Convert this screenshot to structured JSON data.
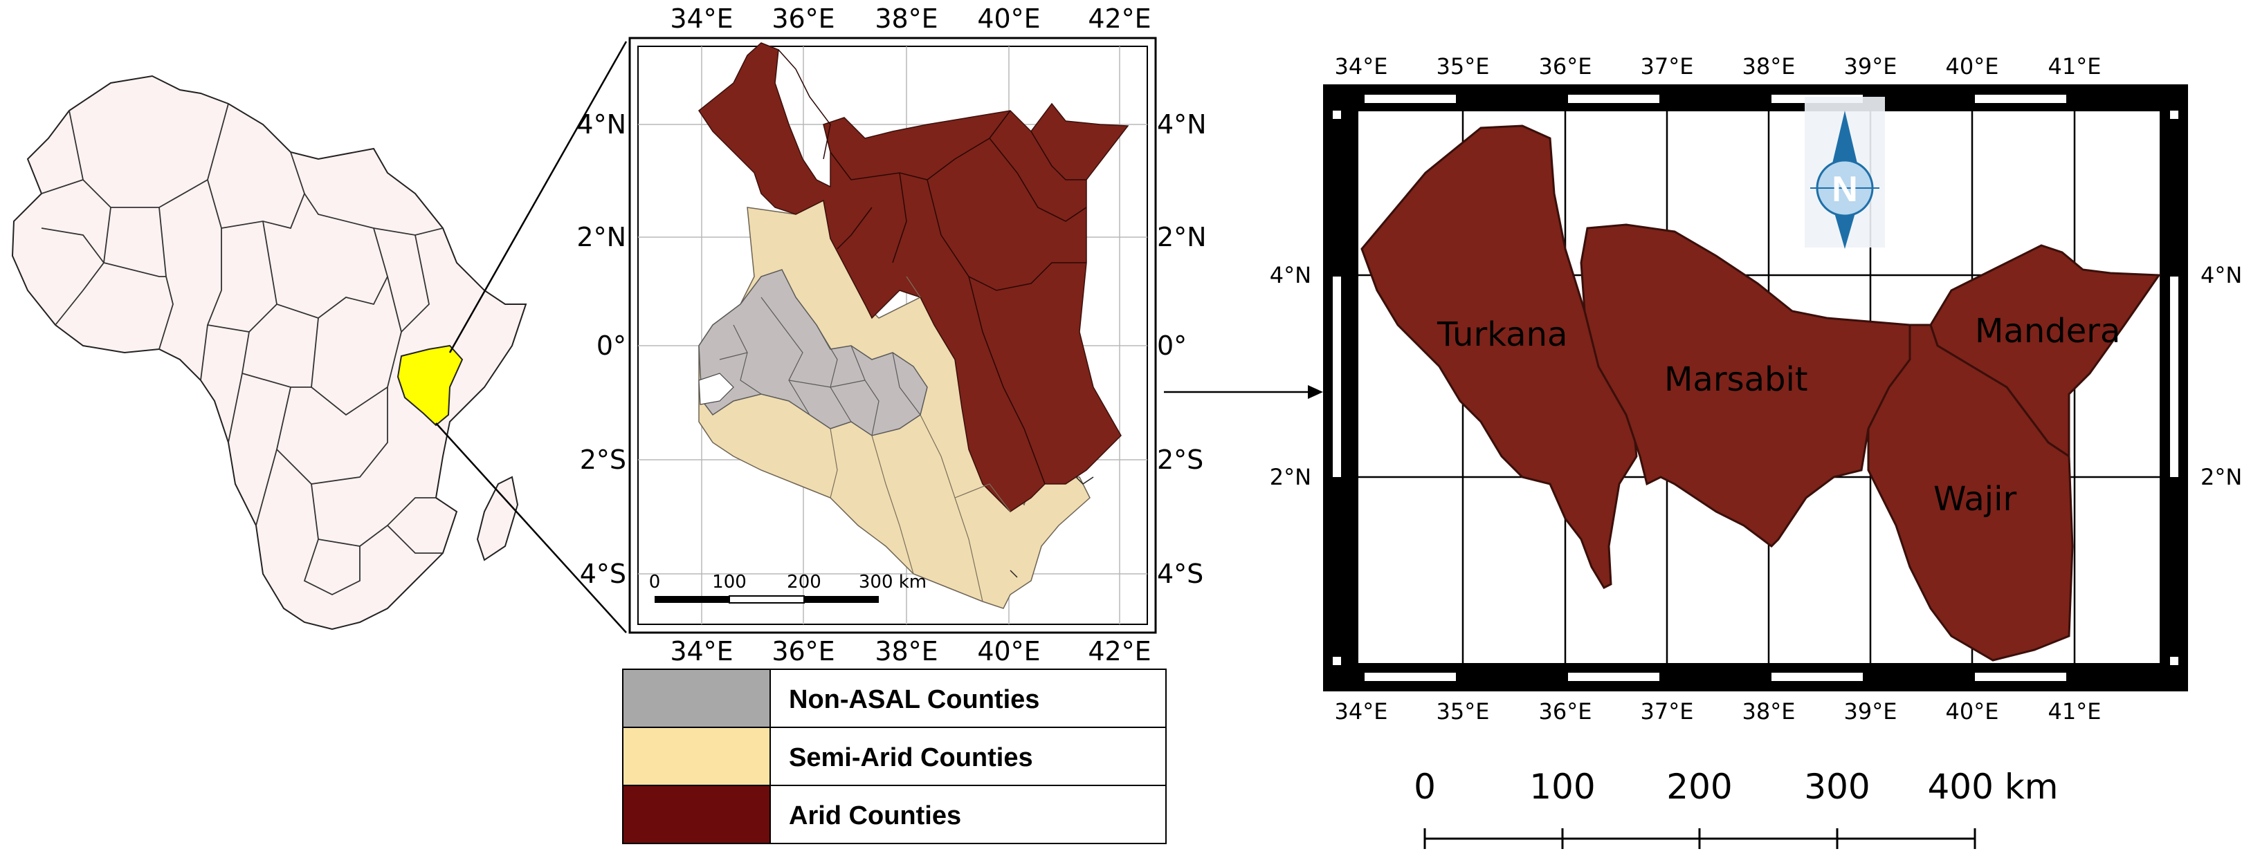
{
  "colors": {
    "arid": "#7d231a",
    "semi_arid": "#efdcb0",
    "non_asal": "#c2bcbc",
    "africa_fill": "#fcf2f2",
    "kenya_highlight": "#ffff00"
  },
  "inset_map": {
    "lon_ticks": [
      "34°E",
      "36°E",
      "38°E",
      "40°E",
      "42°E"
    ],
    "lat_ticks_left": [
      "4°N",
      "2°N",
      "0°",
      "2°S",
      "4°S"
    ],
    "lat_ticks_right": [
      "4°N",
      "2°N",
      "0°",
      "2°S",
      "4°S"
    ],
    "scale_bar": [
      "0",
      "100",
      "200",
      "300 km"
    ]
  },
  "legend": [
    {
      "label": "Non-ASAL Counties",
      "color": "#a8a8a8"
    },
    {
      "label": "Semi-Arid Counties",
      "color": "#fbe3a4"
    },
    {
      "label": "Arid Counties",
      "color": "#6b0b0b"
    }
  ],
  "study_map": {
    "lon_ticks": [
      "34°E",
      "35°E",
      "36°E",
      "37°E",
      "38°E",
      "39°E",
      "40°E",
      "41°E"
    ],
    "lat_ticks": [
      "4°N",
      "2°N"
    ],
    "counties": [
      "Turkana",
      "Marsabit",
      "Mandera",
      "Wajir"
    ],
    "north_arrow": "N",
    "scale_bar": [
      "0",
      "100",
      "200",
      "300",
      "400 km"
    ]
  }
}
